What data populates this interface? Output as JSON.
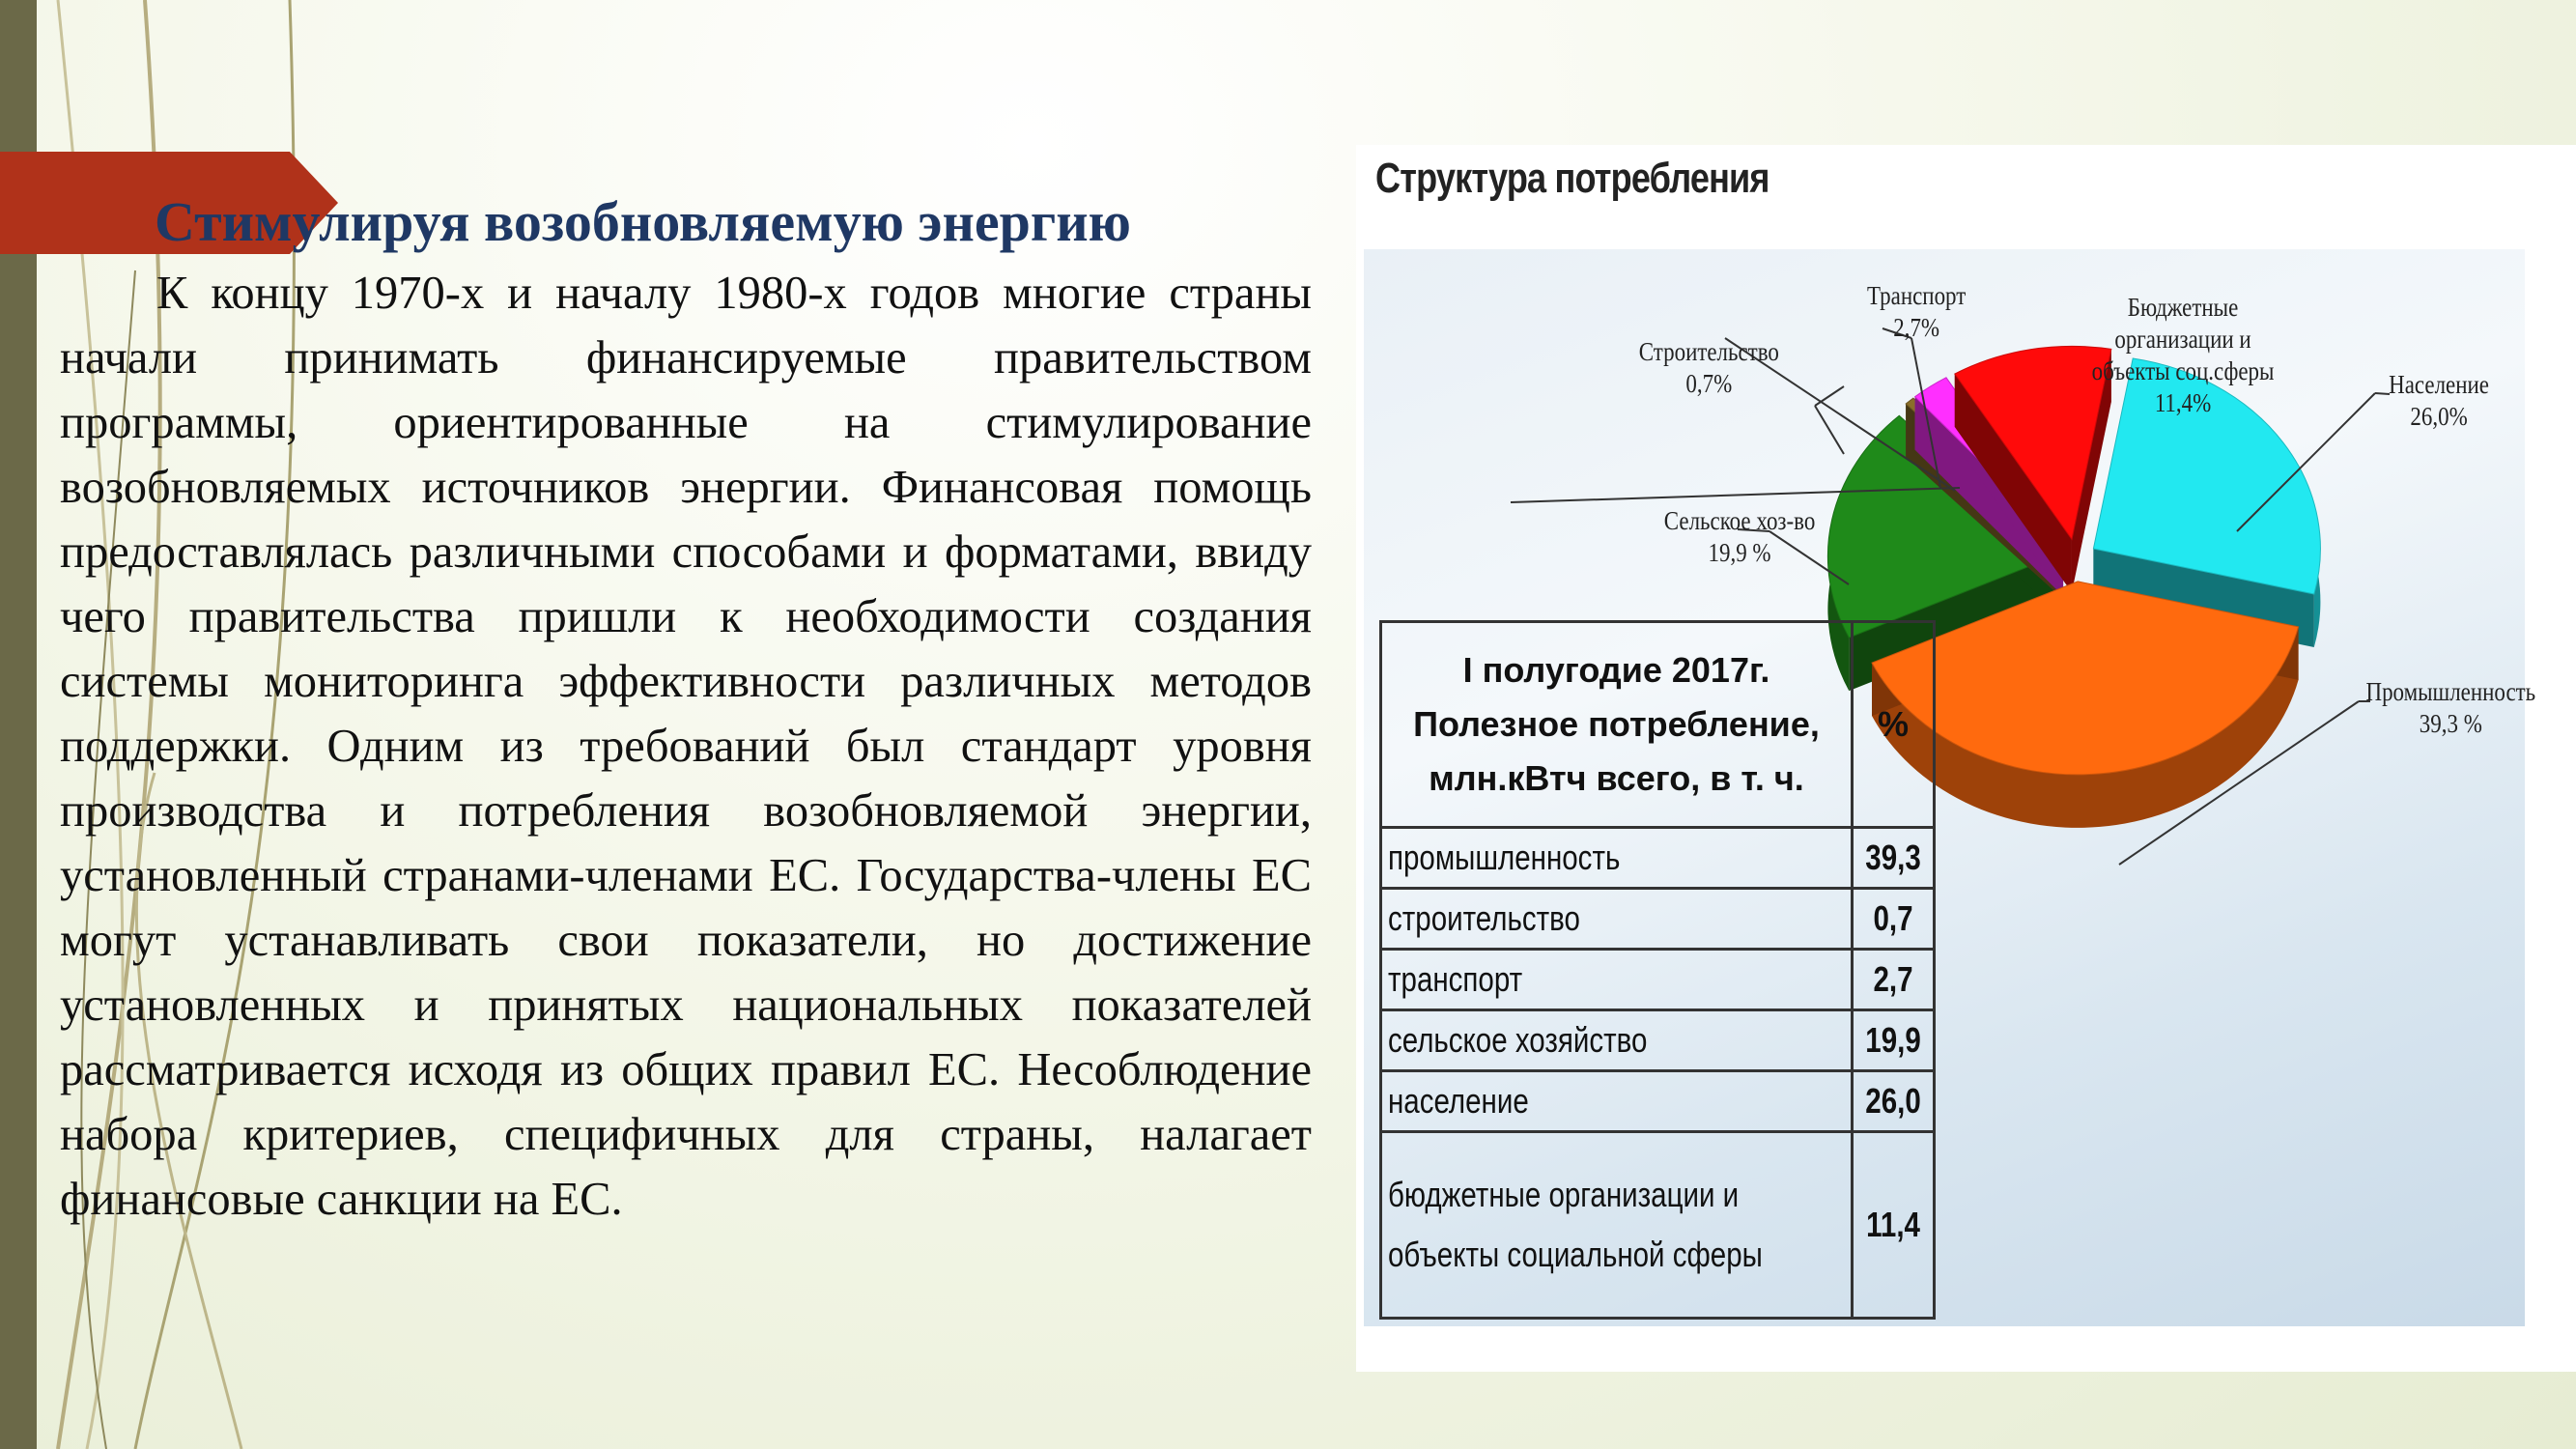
{
  "slide": {
    "title": "Стимулируя возобновляемую энергию",
    "body": "К концу 1970-х и началу 1980-х годов многие страны начали принимать финансируемые правительством программы, ориентированные на стимулирование возобновляемых источников энергии. Финансовая помощь предоставлялась различными способами и форматами, ввиду чего правительства пришли к необходимости создания системы мониторинга эффективности различных методов поддержки. Одним из требований был стандарт уровня производства и потребления возобновляемой энергии, установленный странами-членами ЕС. Государства-члены ЕС могут устанавливать свои показатели, но достижение установленных и принятых национальных показателей рассматривается исходя из общих правил ЕС. Несоблюдение набора критериев, специфичных для страны, налагает финансовые санкции на ЕС."
  },
  "colors": {
    "title": "#1f3864",
    "accent_tab": "#b0321a",
    "side_bar": "#6b6948"
  },
  "chart_data": {
    "type": "pie",
    "title": "Структура потребления",
    "slices": [
      {
        "label_line1": "Промышленность",
        "label_line2": "39,3 %",
        "value": 39.3,
        "color": "#ff6a0e"
      },
      {
        "label_line1": "Строительство",
        "label_line2": "0,7%",
        "value": 0.7,
        "color": "#8a6e2a"
      },
      {
        "label_line1": "Транспорт",
        "label_line2": "2,7%",
        "value": 2.7,
        "color": "#ff2fff"
      },
      {
        "label_line1": "Сельское хоз-во",
        "label_line2": "19,9 %",
        "value": 19.9,
        "color": "#1f8a1a"
      },
      {
        "label_line1": "Население",
        "label_line2": "26,0%",
        "value": 26.0,
        "color": "#22e8f0"
      },
      {
        "label_line1": "Бюджетные организации и объекты соц.сферы",
        "label_line2": "11,4%",
        "value": 11.4,
        "color": "#ff0a0a"
      }
    ],
    "budget_label": {
      "line1": "Бюджетные",
      "line2": "организации и",
      "line3": "объекты соц.сферы",
      "line4": "11,4%"
    },
    "table": {
      "header_label": "I полугодие 2017г. Полезное потребление, млн.кВтч всего, в т. ч.",
      "header_pct": "%",
      "rows": [
        {
          "label": "промышленность",
          "value": "39,3"
        },
        {
          "label": "строительство",
          "value": "0,7"
        },
        {
          "label": "транспорт",
          "value": "2,7"
        },
        {
          "label": "сельское хозяйство",
          "value": "19,9"
        },
        {
          "label": "население",
          "value": "26,0"
        },
        {
          "label_line1": "бюджетные организации и",
          "label_line2": "объекты социальной сферы",
          "value": "11,4"
        }
      ]
    }
  }
}
